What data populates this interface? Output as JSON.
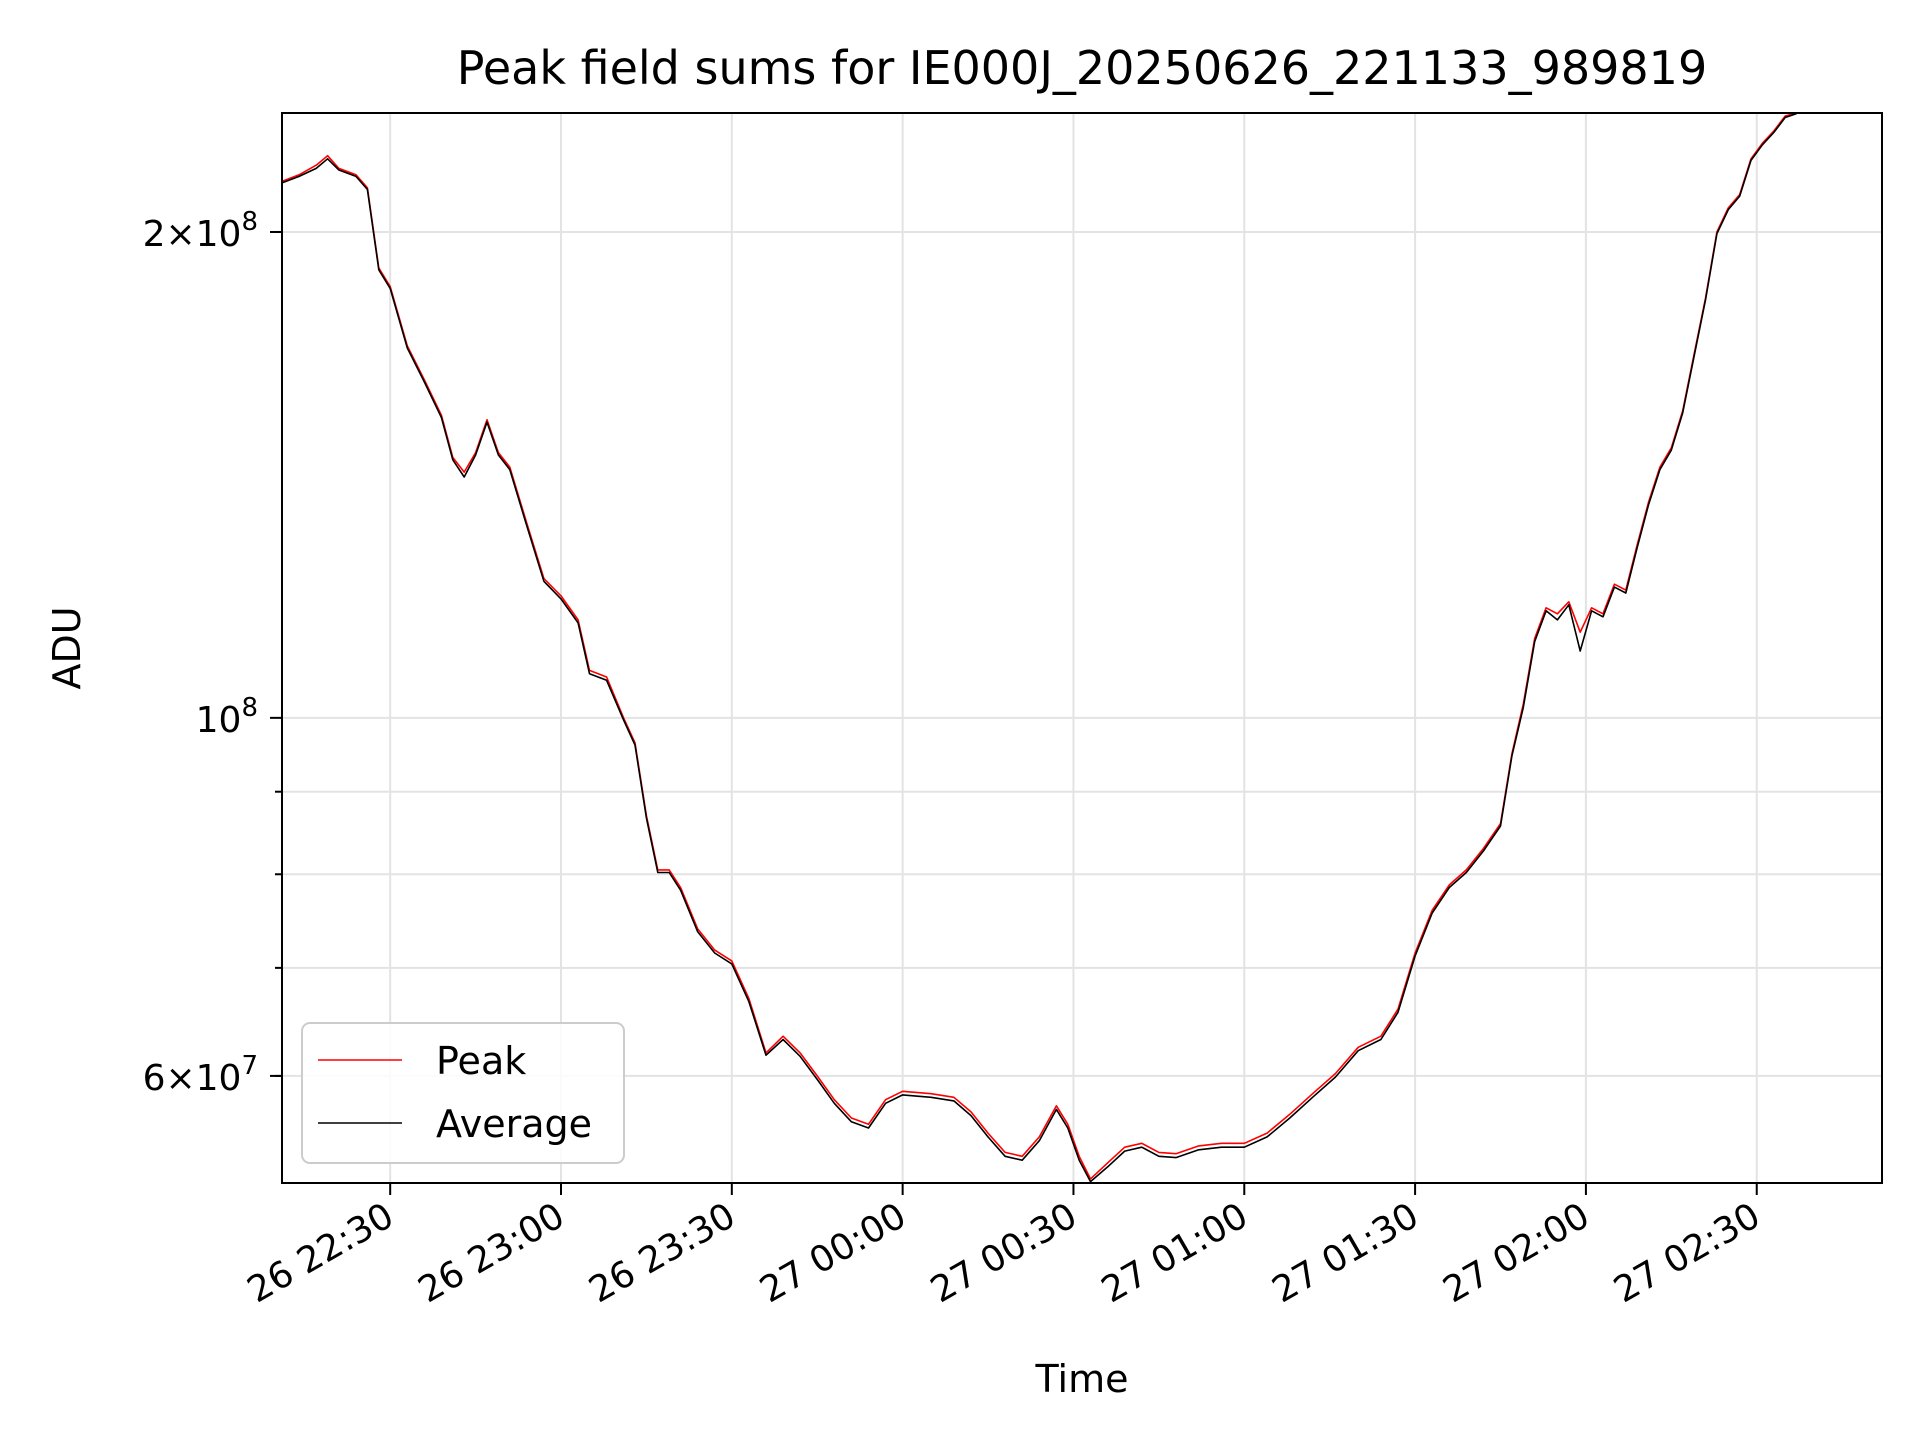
{
  "chart_data": {
    "type": "line",
    "title": "Peak field sums for IE000J_20250626_221133_989819",
    "xlabel": "Time",
    "ylabel": "ADU",
    "yscale": "log",
    "ylim": [
      51500000,
      237000000
    ],
    "xlim": [
      "2025-06-26T22:11",
      "2025-06-27T02:52"
    ],
    "grid": true,
    "legend_position": "lower-left",
    "x_ticks": [
      "26 22:30",
      "26 23:00",
      "26 23:30",
      "27 00:00",
      "27 00:30",
      "27 01:00",
      "27 01:30",
      "27 02:00",
      "27 02:30"
    ],
    "y_ticks": [
      {
        "base": "2",
        "exp": "8",
        "value": 200000000
      },
      {
        "base": "10",
        "exp": "8",
        "value": 100000000
      },
      {
        "base": "6",
        "exp": "7",
        "value": 60000000
      }
    ],
    "series": [
      {
        "name": "Peak",
        "color": "#ff0000",
        "points": [
          [
            "2025-06-26T22:11",
            215000000
          ],
          [
            "2025-06-26T22:14",
            217000000
          ],
          [
            "2025-06-26T22:17",
            220000000
          ],
          [
            "2025-06-26T22:19",
            223000000
          ],
          [
            "2025-06-26T22:21",
            219000000
          ],
          [
            "2025-06-26T22:24",
            217000000
          ],
          [
            "2025-06-26T22:26",
            213000000
          ],
          [
            "2025-06-26T22:28",
            190000000
          ],
          [
            "2025-06-26T22:30",
            185000000
          ],
          [
            "2025-06-26T22:33",
            170000000
          ],
          [
            "2025-06-26T22:36",
            162000000
          ],
          [
            "2025-06-26T22:39",
            154000000
          ],
          [
            "2025-06-26T22:41",
            145000000
          ],
          [
            "2025-06-26T22:43",
            142000000
          ],
          [
            "2025-06-26T22:45",
            146000000
          ],
          [
            "2025-06-26T22:47",
            153000000
          ],
          [
            "2025-06-26T22:49",
            146000000
          ],
          [
            "2025-06-26T22:51",
            143000000
          ],
          [
            "2025-06-26T22:54",
            132000000
          ],
          [
            "2025-06-26T22:57",
            122000000
          ],
          [
            "2025-06-26T23:00",
            119000000
          ],
          [
            "2025-06-26T23:03",
            115000000
          ],
          [
            "2025-06-26T23:05",
            107000000
          ],
          [
            "2025-06-26T23:08",
            106000000
          ],
          [
            "2025-06-26T23:11",
            100000000
          ],
          [
            "2025-06-26T23:13",
            96500000
          ],
          [
            "2025-06-26T23:15",
            87000000
          ],
          [
            "2025-06-26T23:17",
            80500000
          ],
          [
            "2025-06-26T23:19",
            80500000
          ],
          [
            "2025-06-26T23:21",
            78500000
          ],
          [
            "2025-06-26T23:24",
            74000000
          ],
          [
            "2025-06-26T23:27",
            71800000
          ],
          [
            "2025-06-26T23:30",
            70700000
          ],
          [
            "2025-06-26T23:33",
            67000000
          ],
          [
            "2025-06-26T23:36",
            62000000
          ],
          [
            "2025-06-26T23:39",
            63500000
          ],
          [
            "2025-06-26T23:42",
            62000000
          ],
          [
            "2025-06-26T23:45",
            60000000
          ],
          [
            "2025-06-26T23:48",
            58000000
          ],
          [
            "2025-06-26T23:51",
            56500000
          ],
          [
            "2025-06-26T23:54",
            56000000
          ],
          [
            "2025-06-26T23:57",
            58000000
          ],
          [
            "2025-06-27T00:00",
            58700000
          ],
          [
            "2025-06-27T00:05",
            58500000
          ],
          [
            "2025-06-27T00:09",
            58200000
          ],
          [
            "2025-06-27T00:12",
            57000000
          ],
          [
            "2025-06-27T00:15",
            55300000
          ],
          [
            "2025-06-27T00:18",
            53800000
          ],
          [
            "2025-06-27T00:21",
            53500000
          ],
          [
            "2025-06-27T00:24",
            55000000
          ],
          [
            "2025-06-27T00:27",
            57500000
          ],
          [
            "2025-06-27T00:29",
            56000000
          ],
          [
            "2025-06-27T00:31",
            53500000
          ],
          [
            "2025-06-27T00:33",
            51800000
          ],
          [
            "2025-06-27T00:36",
            53000000
          ],
          [
            "2025-06-27T00:39",
            54200000
          ],
          [
            "2025-06-27T00:42",
            54500000
          ],
          [
            "2025-06-27T00:45",
            53800000
          ],
          [
            "2025-06-27T00:48",
            53700000
          ],
          [
            "2025-06-27T00:52",
            54300000
          ],
          [
            "2025-06-27T00:56",
            54500000
          ],
          [
            "2025-06-27T01:00",
            54500000
          ],
          [
            "2025-06-27T01:04",
            55300000
          ],
          [
            "2025-06-27T01:08",
            56800000
          ],
          [
            "2025-06-27T01:12",
            58500000
          ],
          [
            "2025-06-27T01:16",
            60200000
          ],
          [
            "2025-06-27T01:20",
            62500000
          ],
          [
            "2025-06-27T01:24",
            63500000
          ],
          [
            "2025-06-27T01:27",
            66000000
          ],
          [
            "2025-06-27T01:30",
            71500000
          ],
          [
            "2025-06-27T01:33",
            76000000
          ],
          [
            "2025-06-27T01:36",
            78800000
          ],
          [
            "2025-06-27T01:39",
            80500000
          ],
          [
            "2025-06-27T01:42",
            83000000
          ],
          [
            "2025-06-27T01:45",
            86000000
          ],
          [
            "2025-06-27T01:47",
            95000000
          ],
          [
            "2025-06-27T01:49",
            102000000
          ],
          [
            "2025-06-27T01:51",
            112000000
          ],
          [
            "2025-06-27T01:53",
            117000000
          ],
          [
            "2025-06-27T01:55",
            116000000
          ],
          [
            "2025-06-27T01:57",
            118000000
          ],
          [
            "2025-06-27T01:59",
            113000000
          ],
          [
            "2025-06-27T02:01",
            117000000
          ],
          [
            "2025-06-27T02:03",
            116000000
          ],
          [
            "2025-06-27T02:05",
            121000000
          ],
          [
            "2025-06-27T02:07",
            120000000
          ],
          [
            "2025-06-27T02:09",
            128000000
          ],
          [
            "2025-06-27T02:11",
            136000000
          ],
          [
            "2025-06-27T02:13",
            143000000
          ],
          [
            "2025-06-27T02:15",
            147000000
          ],
          [
            "2025-06-27T02:17",
            155000000
          ],
          [
            "2025-06-27T02:19",
            168000000
          ],
          [
            "2025-06-27T02:21",
            182000000
          ],
          [
            "2025-06-27T02:23",
            200000000
          ],
          [
            "2025-06-27T02:25",
            207000000
          ],
          [
            "2025-06-27T02:27",
            211000000
          ],
          [
            "2025-06-27T02:29",
            222000000
          ],
          [
            "2025-06-27T02:31",
            227000000
          ],
          [
            "2025-06-27T02:33",
            231000000
          ],
          [
            "2025-06-27T02:35",
            236000000
          ],
          [
            "2025-06-27T02:37",
            237000000
          ]
        ]
      },
      {
        "name": "Average",
        "color": "#000000",
        "points": [
          [
            "2025-06-26T22:11",
            214500000
          ],
          [
            "2025-06-26T22:14",
            216500000
          ],
          [
            "2025-06-26T22:17",
            219000000
          ],
          [
            "2025-06-26T22:19",
            222000000
          ],
          [
            "2025-06-26T22:21",
            218500000
          ],
          [
            "2025-06-26T22:24",
            216500000
          ],
          [
            "2025-06-26T22:26",
            212500000
          ],
          [
            "2025-06-26T22:28",
            189500000
          ],
          [
            "2025-06-26T22:30",
            184500000
          ],
          [
            "2025-06-26T22:33",
            169500000
          ],
          [
            "2025-06-26T22:36",
            161500000
          ],
          [
            "2025-06-26T22:39",
            153500000
          ],
          [
            "2025-06-26T22:41",
            144500000
          ],
          [
            "2025-06-26T22:43",
            141000000
          ],
          [
            "2025-06-26T22:45",
            145500000
          ],
          [
            "2025-06-26T22:47",
            152500000
          ],
          [
            "2025-06-26T22:49",
            145500000
          ],
          [
            "2025-06-26T22:51",
            142500000
          ],
          [
            "2025-06-26T22:54",
            131500000
          ],
          [
            "2025-06-26T22:57",
            121500000
          ],
          [
            "2025-06-26T23:00",
            118500000
          ],
          [
            "2025-06-26T23:03",
            114500000
          ],
          [
            "2025-06-26T23:05",
            106500000
          ],
          [
            "2025-06-26T23:08",
            105500000
          ],
          [
            "2025-06-26T23:11",
            99700000
          ],
          [
            "2025-06-26T23:13",
            96200000
          ],
          [
            "2025-06-26T23:15",
            86700000
          ],
          [
            "2025-06-26T23:17",
            80200000
          ],
          [
            "2025-06-26T23:19",
            80200000
          ],
          [
            "2025-06-26T23:21",
            78200000
          ],
          [
            "2025-06-26T23:24",
            73700000
          ],
          [
            "2025-06-26T23:27",
            71500000
          ],
          [
            "2025-06-26T23:30",
            70400000
          ],
          [
            "2025-06-26T23:33",
            66700000
          ],
          [
            "2025-06-26T23:36",
            61800000
          ],
          [
            "2025-06-26T23:39",
            63200000
          ],
          [
            "2025-06-26T23:42",
            61700000
          ],
          [
            "2025-06-26T23:45",
            59700000
          ],
          [
            "2025-06-26T23:48",
            57700000
          ],
          [
            "2025-06-26T23:51",
            56200000
          ],
          [
            "2025-06-26T23:54",
            55700000
          ],
          [
            "2025-06-26T23:57",
            57700000
          ],
          [
            "2025-06-27T00:00",
            58400000
          ],
          [
            "2025-06-27T00:05",
            58200000
          ],
          [
            "2025-06-27T00:09",
            57900000
          ],
          [
            "2025-06-27T00:12",
            56700000
          ],
          [
            "2025-06-27T00:15",
            55000000
          ],
          [
            "2025-06-27T00:18",
            53500000
          ],
          [
            "2025-06-27T00:21",
            53200000
          ],
          [
            "2025-06-27T00:24",
            54700000
          ],
          [
            "2025-06-27T00:27",
            57200000
          ],
          [
            "2025-06-27T00:29",
            55700000
          ],
          [
            "2025-06-27T00:31",
            53200000
          ],
          [
            "2025-06-27T00:33",
            51600000
          ],
          [
            "2025-06-27T00:36",
            52700000
          ],
          [
            "2025-06-27T00:39",
            53900000
          ],
          [
            "2025-06-27T00:42",
            54200000
          ],
          [
            "2025-06-27T00:45",
            53500000
          ],
          [
            "2025-06-27T00:48",
            53400000
          ],
          [
            "2025-06-27T00:52",
            54000000
          ],
          [
            "2025-06-27T00:56",
            54200000
          ],
          [
            "2025-06-27T01:00",
            54200000
          ],
          [
            "2025-06-27T01:04",
            55000000
          ],
          [
            "2025-06-27T01:08",
            56500000
          ],
          [
            "2025-06-27T01:12",
            58200000
          ],
          [
            "2025-06-27T01:16",
            59900000
          ],
          [
            "2025-06-27T01:20",
            62200000
          ],
          [
            "2025-06-27T01:24",
            63200000
          ],
          [
            "2025-06-27T01:27",
            65700000
          ],
          [
            "2025-06-27T01:30",
            71200000
          ],
          [
            "2025-06-27T01:33",
            75700000
          ],
          [
            "2025-06-27T01:36",
            78500000
          ],
          [
            "2025-06-27T01:39",
            80200000
          ],
          [
            "2025-06-27T01:42",
            82700000
          ],
          [
            "2025-06-27T01:45",
            85700000
          ],
          [
            "2025-06-27T01:47",
            94700000
          ],
          [
            "2025-06-27T01:49",
            101500000
          ],
          [
            "2025-06-27T01:51",
            111500000
          ],
          [
            "2025-06-27T01:53",
            116500000
          ],
          [
            "2025-06-27T01:55",
            115000000
          ],
          [
            "2025-06-27T01:57",
            117500000
          ],
          [
            "2025-06-27T01:59",
            110000000
          ],
          [
            "2025-06-27T02:01",
            116500000
          ],
          [
            "2025-06-27T02:03",
            115500000
          ],
          [
            "2025-06-27T02:05",
            120500000
          ],
          [
            "2025-06-27T02:07",
            119500000
          ],
          [
            "2025-06-27T02:09",
            127500000
          ],
          [
            "2025-06-27T02:11",
            135500000
          ],
          [
            "2025-06-27T02:13",
            142500000
          ],
          [
            "2025-06-27T02:15",
            146500000
          ],
          [
            "2025-06-27T02:17",
            154500000
          ],
          [
            "2025-06-27T02:19",
            167500000
          ],
          [
            "2025-06-27T02:21",
            181500000
          ],
          [
            "2025-06-27T02:23",
            199500000
          ],
          [
            "2025-06-27T02:25",
            206500000
          ],
          [
            "2025-06-27T02:27",
            210500000
          ],
          [
            "2025-06-27T02:29",
            221500000
          ],
          [
            "2025-06-27T02:31",
            226500000
          ],
          [
            "2025-06-27T02:33",
            230500000
          ],
          [
            "2025-06-27T02:35",
            235500000
          ],
          [
            "2025-06-27T02:37",
            236800000
          ]
        ]
      }
    ]
  }
}
